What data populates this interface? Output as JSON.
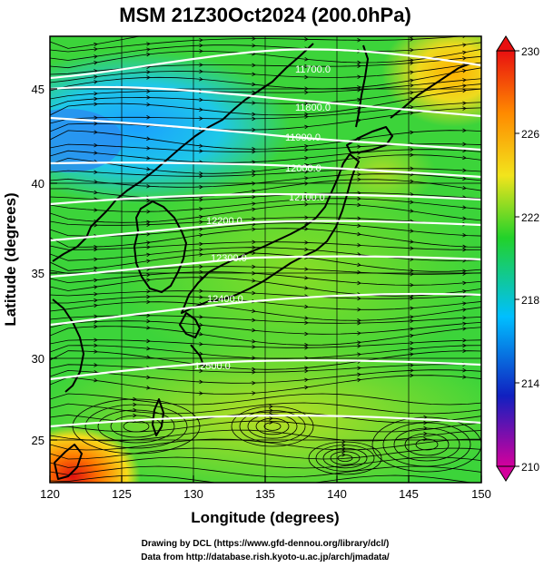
{
  "title": "MSM 21Z30Oct2024 (200.0hPa)",
  "x_axis": {
    "label": "Longitude (degrees)",
    "ticks": [
      "120",
      "125",
      "130",
      "135",
      "140",
      "145",
      "150"
    ]
  },
  "y_axis": {
    "label": "Latitude  (degrees)",
    "ticks": [
      "25",
      "30",
      "35",
      "40",
      "45"
    ]
  },
  "colorbar": {
    "ticks": [
      "230",
      "226",
      "222",
      "218",
      "214",
      "210"
    ],
    "colors": [
      "#d4009c",
      "#1020c0",
      "#00bfff",
      "#22d22a",
      "#f2e41c",
      "#ff8a00",
      "#e81010"
    ]
  },
  "contour_labels": [
    "11700.0",
    "11800.0",
    "11900.0",
    "12000.0",
    "12100.0",
    "12200.0",
    "12300.0",
    "12400.0",
    "12500.0"
  ],
  "credits": {
    "line1": "Drawing by DCL (https://www.gfd-dennou.org/library/dcl/)",
    "line2": "Data from http://database.rish.kyoto-u.ac.jp/arch/jmadata/"
  }
}
